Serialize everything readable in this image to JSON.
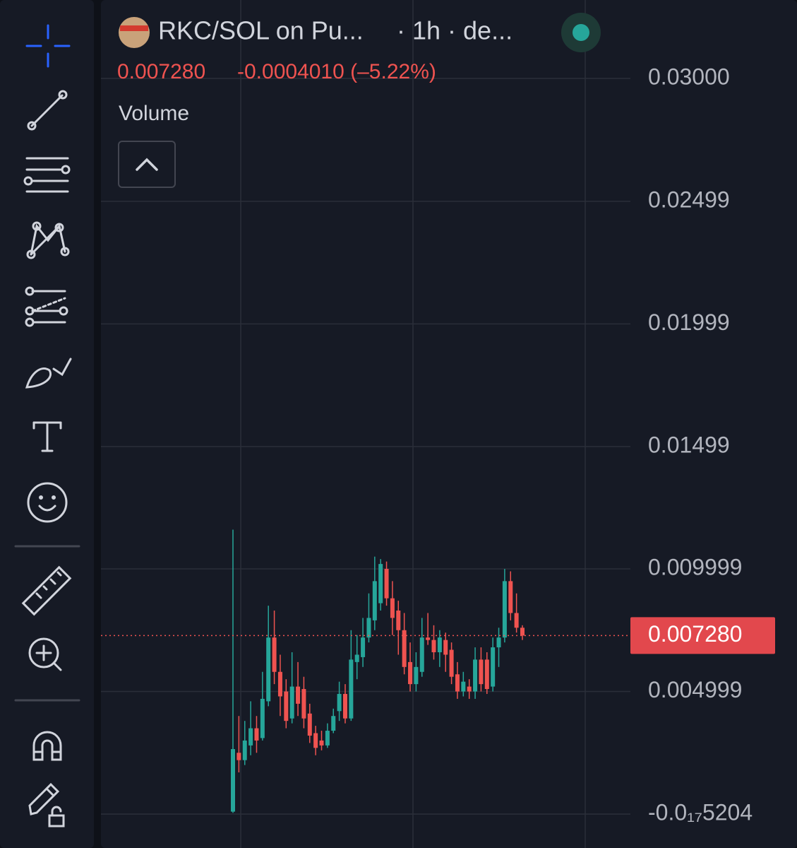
{
  "chart_data": {
    "type": "candlestick",
    "title": "RKC/SOL on Pu...",
    "interval": "· 1h · de...",
    "change_label": "-0.0004010 (–5.22%)",
    "indicator": "Volume",
    "last_price": {
      "value": 0.00728,
      "label": "0.007280"
    },
    "up_color": "#26a69a",
    "down_color": "#ef5350",
    "ylim": [
      -0.001383,
      0.0332
    ],
    "yticks": [
      {
        "value": 0.03,
        "label": "0.03000"
      },
      0.02499,
      0.01999,
      0.01499,
      0.009999,
      0.004999,
      {
        "value": -5.204e-18,
        "label": "-0.0₁₇5204"
      }
    ],
    "grid": true,
    "open": [
      0.0001,
      0.0025,
      0.0022,
      0.0028,
      0.0035,
      0.0031,
      0.0046,
      0.0072,
      0.0058,
      0.005,
      0.0039,
      0.0052,
      0.0051,
      0.0041,
      0.0033,
      0.003,
      0.0028,
      0.0034,
      0.0042,
      0.0049,
      0.0039,
      0.0062,
      0.0064,
      0.0072,
      0.0079,
      0.0086,
      0.01,
      0.0088,
      0.0083,
      0.0075,
      0.0062,
      0.0053,
      0.0058,
      0.0072,
      0.0071,
      0.0066,
      0.0071,
      0.0067,
      0.0057,
      0.005,
      0.0052,
      0.005,
      0.0063,
      0.0063,
      0.0052,
      0.0068,
      0.0072,
      0.0095,
      0.0082,
      0.0076
    ],
    "high": [
      0.0116,
      0.004,
      0.0038,
      0.0046,
      0.004,
      0.0058,
      0.0085,
      0.0083,
      0.0065,
      0.0055,
      0.0066,
      0.0062,
      0.0056,
      0.0045,
      0.0036,
      0.0034,
      0.0037,
      0.0043,
      0.0054,
      0.0053,
      0.0075,
      0.0073,
      0.008,
      0.009,
      0.0105,
      0.0104,
      0.0103,
      0.0095,
      0.0087,
      0.0082,
      0.007,
      0.0066,
      0.008,
      0.0082,
      0.0077,
      0.0075,
      0.0074,
      0.007,
      0.0062,
      0.0058,
      0.0055,
      0.0068,
      0.0068,
      0.0066,
      0.0072,
      0.0076,
      0.01,
      0.0099,
      0.009,
      0.0077
    ],
    "low": [
      5e-05,
      0.0017,
      0.002,
      0.0024,
      0.0025,
      0.003,
      0.0044,
      0.0053,
      0.004,
      0.0035,
      0.0037,
      0.004,
      0.0035,
      0.0029,
      0.0024,
      0.0026,
      0.0027,
      0.0033,
      0.0038,
      0.0037,
      0.0038,
      0.0055,
      0.006,
      0.007,
      0.0075,
      0.0083,
      0.0085,
      0.0073,
      0.0065,
      0.0057,
      0.005,
      0.005,
      0.0056,
      0.0069,
      0.0063,
      0.006,
      0.0058,
      0.0053,
      0.0047,
      0.0048,
      0.0047,
      0.0047,
      0.005,
      0.0049,
      0.005,
      0.006,
      0.007,
      0.0079,
      0.0074,
      0.0071
    ],
    "close": [
      0.00265,
      0.0022,
      0.003,
      0.0035,
      0.003,
      0.0047,
      0.0072,
      0.0058,
      0.0048,
      0.0038,
      0.0052,
      0.0045,
      0.0039,
      0.0032,
      0.0027,
      0.0028,
      0.0034,
      0.004,
      0.0049,
      0.0039,
      0.0063,
      0.0065,
      0.0072,
      0.008,
      0.0095,
      0.0102,
      0.0088,
      0.008,
      0.0075,
      0.006,
      0.0053,
      0.006,
      0.0072,
      0.0071,
      0.0066,
      0.0072,
      0.0065,
      0.0056,
      0.005,
      0.0054,
      0.005,
      0.0063,
      0.0053,
      0.0051,
      0.0068,
      0.0072,
      0.0095,
      0.0082,
      0.0076,
      0.00728
    ]
  }
}
